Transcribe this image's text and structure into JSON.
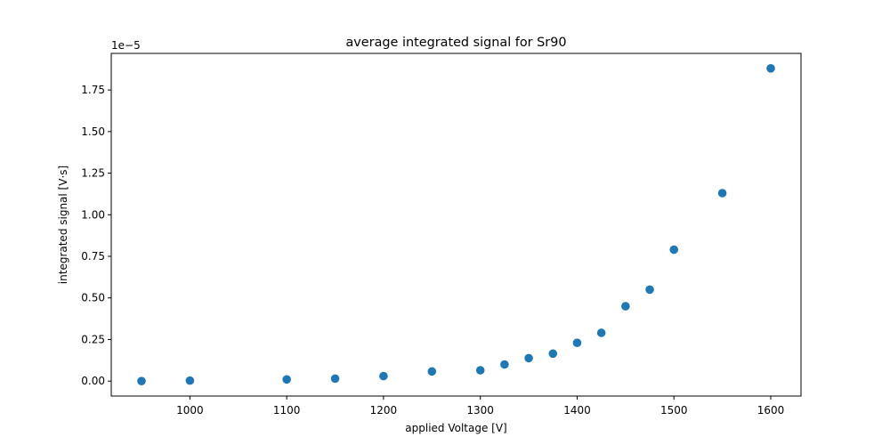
{
  "chart_data": {
    "type": "scatter",
    "title": "average integrated signal for Sr90",
    "xlabel": "applied Voltage [V]",
    "ylabel": "integrated signal [V·s]",
    "y_offset_label": "1e−5",
    "xlim": [
      918.75,
      1631.25
    ],
    "ylim": [
      -0.09,
      1.97
    ],
    "x_ticks": [
      1000,
      1100,
      1200,
      1300,
      1400,
      1500,
      1600
    ],
    "x_tick_labels": [
      "1000",
      "1100",
      "1200",
      "1300",
      "1400",
      "1500",
      "1600"
    ],
    "y_ticks": [
      0.0,
      0.25,
      0.5,
      0.75,
      1.0,
      1.25,
      1.5,
      1.75
    ],
    "y_tick_labels": [
      "0.00",
      "0.25",
      "0.50",
      "0.75",
      "1.00",
      "1.25",
      "1.50",
      "1.75"
    ],
    "grid": false,
    "legend": "none",
    "marker_color": "#1f77b4",
    "series": [
      {
        "x": [
          950,
          1000,
          1100,
          1150,
          1200,
          1250,
          1300,
          1325,
          1350,
          1375,
          1400,
          1425,
          1450,
          1475,
          1500,
          1550,
          1600
        ],
        "y": [
          0.0,
          0.003,
          0.01,
          0.015,
          0.03,
          0.058,
          0.065,
          0.1,
          0.138,
          0.165,
          0.23,
          0.29,
          0.45,
          0.55,
          0.79,
          1.13,
          1.88
        ]
      }
    ]
  }
}
